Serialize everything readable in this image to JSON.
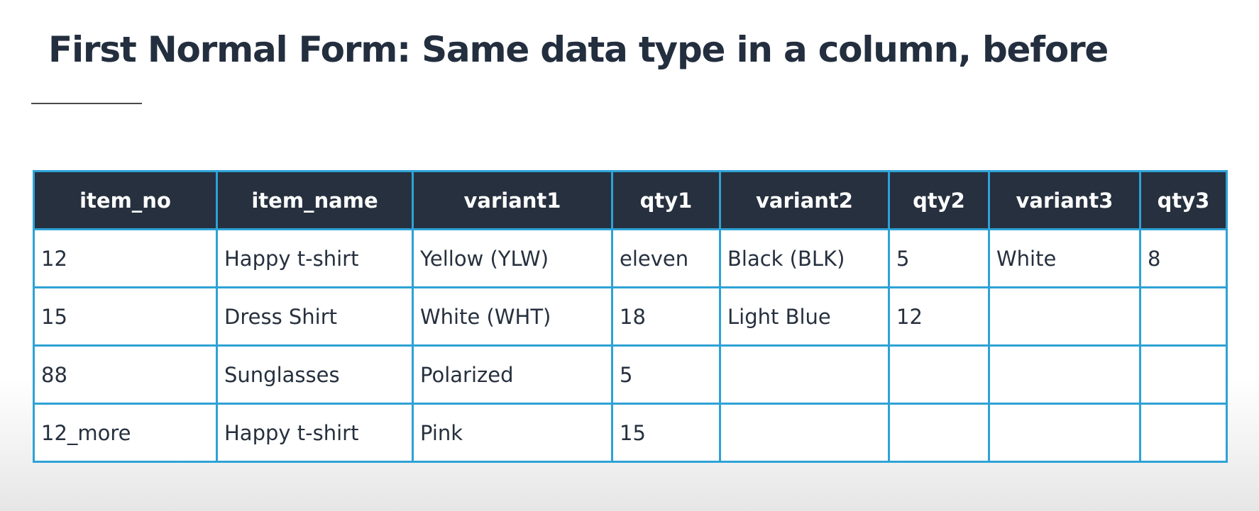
{
  "slide": {
    "title": "First Normal Form: Same data type in a column, before"
  },
  "table": {
    "columns": [
      "item_no",
      "item_name",
      "variant1",
      "qty1",
      "variant2",
      "qty2",
      "variant3",
      "qty3"
    ],
    "rows": [
      [
        "12",
        "Happy t-shirt",
        "Yellow (YLW)",
        "eleven",
        "Black (BLK)",
        "5",
        "White",
        "8"
      ],
      [
        "15",
        "Dress Shirt",
        "White (WHT)",
        "18",
        "Light Blue",
        "12",
        "",
        ""
      ],
      [
        "88",
        "Sunglasses",
        "Polarized",
        "5",
        "",
        "",
        "",
        ""
      ],
      [
        "12_more",
        "Happy t-shirt",
        "Pink",
        "15",
        "",
        "",
        "",
        ""
      ]
    ]
  },
  "colors": {
    "header_background": "#26303e",
    "grid_border": "#2ea2d6",
    "title_text": "#232e3e"
  }
}
